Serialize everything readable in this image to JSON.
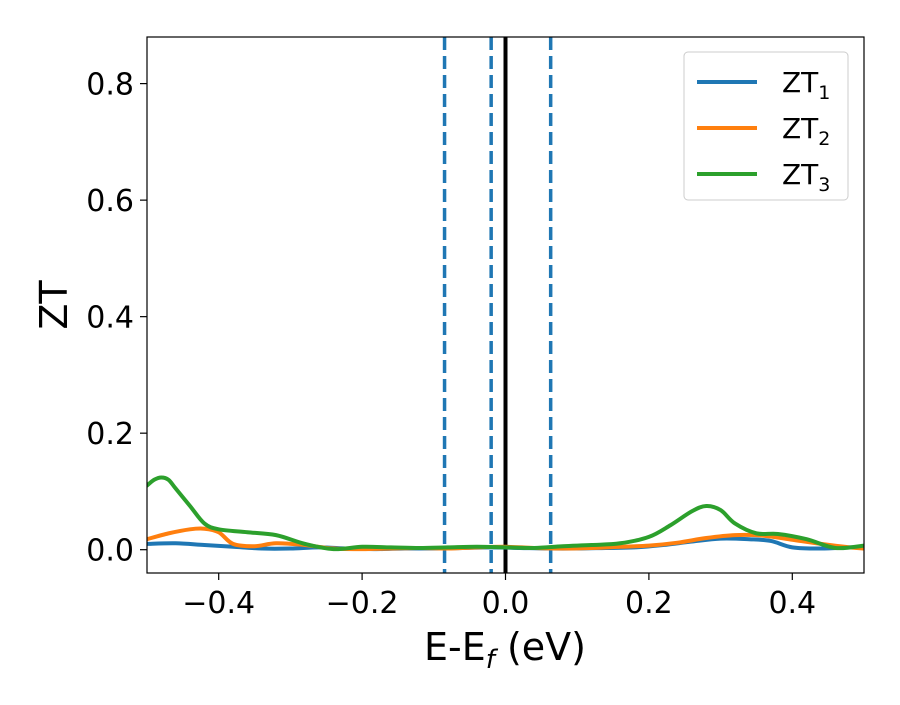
{
  "chart_data": {
    "type": "line",
    "xlabel": "E-E",
    "xlabel_sub": "f",
    "xlabel_unit": " (eV)",
    "ylabel": "ZT",
    "xlim": [
      -0.5,
      0.5
    ],
    "ylim": [
      -0.04,
      0.88
    ],
    "xticks": [
      {
        "value": -0.4,
        "label": "−0.4"
      },
      {
        "value": -0.2,
        "label": "−0.2"
      },
      {
        "value": 0.0,
        "label": "0.0"
      },
      {
        "value": 0.2,
        "label": "0.2"
      },
      {
        "value": 0.4,
        "label": "0.4"
      }
    ],
    "yticks": [
      {
        "value": 0.0,
        "label": "0.0"
      },
      {
        "value": 0.2,
        "label": "0.2"
      },
      {
        "value": 0.4,
        "label": "0.4"
      },
      {
        "value": 0.6,
        "label": "0.6"
      },
      {
        "value": 0.8,
        "label": "0.8"
      }
    ],
    "grid": false,
    "legend_position": "top-right",
    "vlines": [
      {
        "x": -0.085,
        "style": "dashed",
        "color": "#1f77b4"
      },
      {
        "x": -0.02,
        "style": "dashed",
        "color": "#1f77b4"
      },
      {
        "x": 0.0,
        "style": "solid",
        "color": "#000000"
      },
      {
        "x": 0.063,
        "style": "dashed",
        "color": "#1f77b4"
      }
    ],
    "series": [
      {
        "name": "ZT",
        "name_sub": "1",
        "color": "#1f77b4",
        "x": [
          -0.5,
          -0.46,
          -0.42,
          -0.38,
          -0.34,
          -0.3,
          -0.26,
          -0.22,
          -0.18,
          -0.14,
          -0.1,
          -0.06,
          -0.02,
          0.02,
          0.06,
          0.1,
          0.14,
          0.18,
          0.22,
          0.26,
          0.3,
          0.34,
          0.37,
          0.4,
          0.44,
          0.48,
          0.5
        ],
        "y": [
          0.01,
          0.011,
          0.008,
          0.005,
          0.002,
          0.002,
          0.004,
          0.002,
          0.001,
          0.002,
          0.002,
          0.003,
          0.004,
          0.003,
          0.002,
          0.002,
          0.003,
          0.004,
          0.008,
          0.014,
          0.019,
          0.018,
          0.015,
          0.004,
          0.002,
          0.004,
          0.004
        ]
      },
      {
        "name": "ZT",
        "name_sub": "2",
        "color": "#ff7f0e",
        "x": [
          -0.5,
          -0.47,
          -0.44,
          -0.42,
          -0.4,
          -0.38,
          -0.35,
          -0.32,
          -0.28,
          -0.24,
          -0.2,
          -0.16,
          -0.12,
          -0.08,
          -0.04,
          0.0,
          0.04,
          0.08,
          0.12,
          0.16,
          0.2,
          0.24,
          0.28,
          0.32,
          0.36,
          0.4,
          0.44,
          0.48,
          0.5
        ],
        "y": [
          0.018,
          0.028,
          0.035,
          0.036,
          0.03,
          0.01,
          0.006,
          0.011,
          0.008,
          0.002,
          0.001,
          0.002,
          0.003,
          0.002,
          0.004,
          0.005,
          0.003,
          0.002,
          0.003,
          0.005,
          0.007,
          0.012,
          0.02,
          0.025,
          0.024,
          0.017,
          0.01,
          0.004,
          0.002
        ]
      },
      {
        "name": "ZT",
        "name_sub": "3",
        "color": "#2ca02c",
        "x": [
          -0.5,
          -0.49,
          -0.48,
          -0.47,
          -0.46,
          -0.44,
          -0.42,
          -0.4,
          -0.36,
          -0.32,
          -0.28,
          -0.24,
          -0.2,
          -0.16,
          -0.12,
          -0.08,
          -0.04,
          0.0,
          0.04,
          0.08,
          0.12,
          0.16,
          0.2,
          0.23,
          0.26,
          0.28,
          0.3,
          0.32,
          0.35,
          0.38,
          0.42,
          0.46,
          0.5
        ],
        "y": [
          0.11,
          0.12,
          0.124,
          0.12,
          0.105,
          0.075,
          0.045,
          0.035,
          0.03,
          0.025,
          0.01,
          0.001,
          0.005,
          0.004,
          0.003,
          0.004,
          0.005,
          0.004,
          0.003,
          0.006,
          0.008,
          0.011,
          0.022,
          0.042,
          0.066,
          0.075,
          0.068,
          0.045,
          0.028,
          0.027,
          0.018,
          0.003,
          0.007
        ]
      }
    ]
  }
}
